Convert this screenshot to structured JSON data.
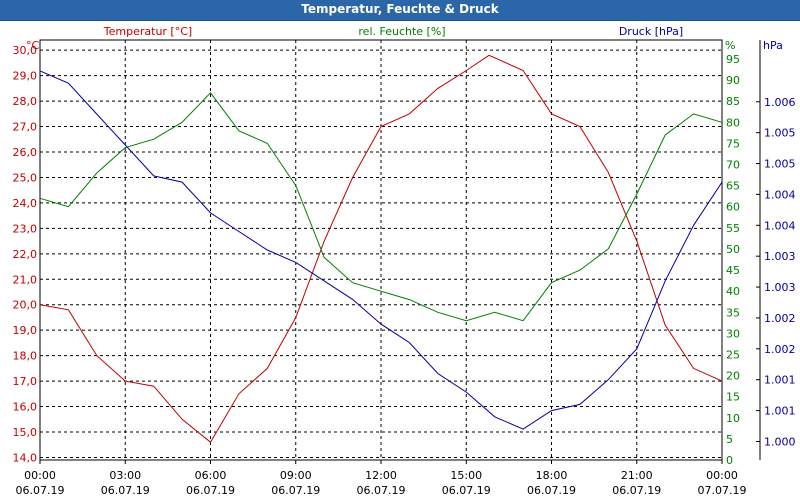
{
  "chart_data": {
    "type": "line",
    "title": "Temperatur, Feuchte & Druck",
    "x_ticks": [
      {
        "time": "00:00",
        "date": "06.07.19"
      },
      {
        "time": "03:00",
        "date": "06.07.19"
      },
      {
        "time": "06:00",
        "date": "06.07.19"
      },
      {
        "time": "09:00",
        "date": "06.07.19"
      },
      {
        "time": "12:00",
        "date": "06.07.19"
      },
      {
        "time": "15:00",
        "date": "06.07.19"
      },
      {
        "time": "18:00",
        "date": "06.07.19"
      },
      {
        "time": "21:00",
        "date": "06.07.19"
      },
      {
        "time": "00:00",
        "date": "07.07.19"
      }
    ],
    "x_range_hours": [
      0,
      24
    ],
    "axes": {
      "temperature": {
        "unit": "°C",
        "label": "Temperatur [°C]",
        "color": "#c00000",
        "range": [
          13.9,
          30.4
        ],
        "ticks": [
          "14,0",
          "15,0",
          "16,0",
          "17,0",
          "18,0",
          "19,0",
          "20,0",
          "21,0",
          "22,0",
          "23,0",
          "24,0",
          "25,0",
          "26,0",
          "27,0",
          "28,0",
          "29,0",
          "30,0"
        ]
      },
      "humidity": {
        "unit": "%",
        "label": "rel. Feuchte [%]",
        "color": "#008000",
        "range": [
          0,
          99.5
        ],
        "ticks": [
          "0",
          "5",
          "10",
          "15",
          "20",
          "25",
          "30",
          "35",
          "40",
          "45",
          "50",
          "55",
          "60",
          "65",
          "70",
          "75",
          "80",
          "85",
          "90",
          "95"
        ]
      },
      "pressure": {
        "unit": "hPa",
        "label": "Druck [hPa]",
        "color": "#0000a0",
        "range": [
          999.7,
          1006.5
        ],
        "tick_labels": [
          "1.000",
          "1.001",
          "1.001",
          "1.002",
          "1.002",
          "1.003",
          "1.003",
          "1.004",
          "1.004",
          "1.005",
          "1.005",
          "1.006"
        ],
        "tick_values": [
          1000.0,
          1000.5,
          1001.0,
          1001.5,
          1002.0,
          1002.5,
          1003.0,
          1003.5,
          1004.0,
          1004.5,
          1005.0,
          1005.5
        ]
      }
    },
    "series": [
      {
        "name": "Temperatur [°C]",
        "axis": "temperature",
        "points": [
          [
            0,
            20.0
          ],
          [
            1,
            19.8
          ],
          [
            2,
            18.0
          ],
          [
            3,
            17.0
          ],
          [
            4,
            16.8
          ],
          [
            5,
            15.5
          ],
          [
            6,
            14.6
          ],
          [
            7,
            16.5
          ],
          [
            8,
            17.5
          ],
          [
            9,
            19.5
          ],
          [
            10,
            22.5
          ],
          [
            11,
            25.0
          ],
          [
            12,
            27.0
          ],
          [
            13,
            27.5
          ],
          [
            14,
            28.5
          ],
          [
            15,
            29.2
          ],
          [
            15.8,
            29.8
          ],
          [
            17,
            29.2
          ],
          [
            18,
            27.5
          ],
          [
            19,
            27.0
          ],
          [
            20,
            25.2
          ],
          [
            21,
            22.5
          ],
          [
            22,
            19.2
          ],
          [
            23,
            17.5
          ],
          [
            24,
            17.0
          ]
        ]
      },
      {
        "name": "rel. Feuchte [%]",
        "axis": "humidity",
        "points": [
          [
            0,
            62
          ],
          [
            1,
            60
          ],
          [
            2,
            68
          ],
          [
            3,
            74
          ],
          [
            4,
            76
          ],
          [
            5,
            80
          ],
          [
            6,
            87
          ],
          [
            7,
            78
          ],
          [
            8,
            75
          ],
          [
            9,
            65
          ],
          [
            10,
            48
          ],
          [
            11,
            42
          ],
          [
            12,
            40
          ],
          [
            13,
            38
          ],
          [
            14,
            35
          ],
          [
            15,
            33
          ],
          [
            16,
            35
          ],
          [
            17,
            33
          ],
          [
            18,
            42
          ],
          [
            19,
            45
          ],
          [
            20,
            50
          ],
          [
            21,
            63
          ],
          [
            22,
            77
          ],
          [
            23,
            82
          ],
          [
            24,
            80
          ]
        ]
      },
      {
        "name": "Druck [hPa]",
        "axis": "pressure",
        "points": [
          [
            0,
            1006.0
          ],
          [
            1,
            1005.8
          ],
          [
            2,
            1005.3
          ],
          [
            3,
            1004.8
          ],
          [
            4,
            1004.3
          ],
          [
            5,
            1004.2
          ],
          [
            6,
            1003.7
          ],
          [
            7,
            1003.4
          ],
          [
            8,
            1003.1
          ],
          [
            9,
            1002.9
          ],
          [
            10,
            1002.6
          ],
          [
            11,
            1002.3
          ],
          [
            12,
            1001.9
          ],
          [
            13,
            1001.6
          ],
          [
            14,
            1001.1
          ],
          [
            15,
            1000.8
          ],
          [
            16,
            1000.4
          ],
          [
            17,
            1000.2
          ],
          [
            18,
            1000.5
          ],
          [
            19,
            1000.6
          ],
          [
            20,
            1001.0
          ],
          [
            21,
            1001.5
          ],
          [
            22,
            1002.6
          ],
          [
            23,
            1003.5
          ],
          [
            24,
            1004.2
          ]
        ]
      }
    ]
  }
}
